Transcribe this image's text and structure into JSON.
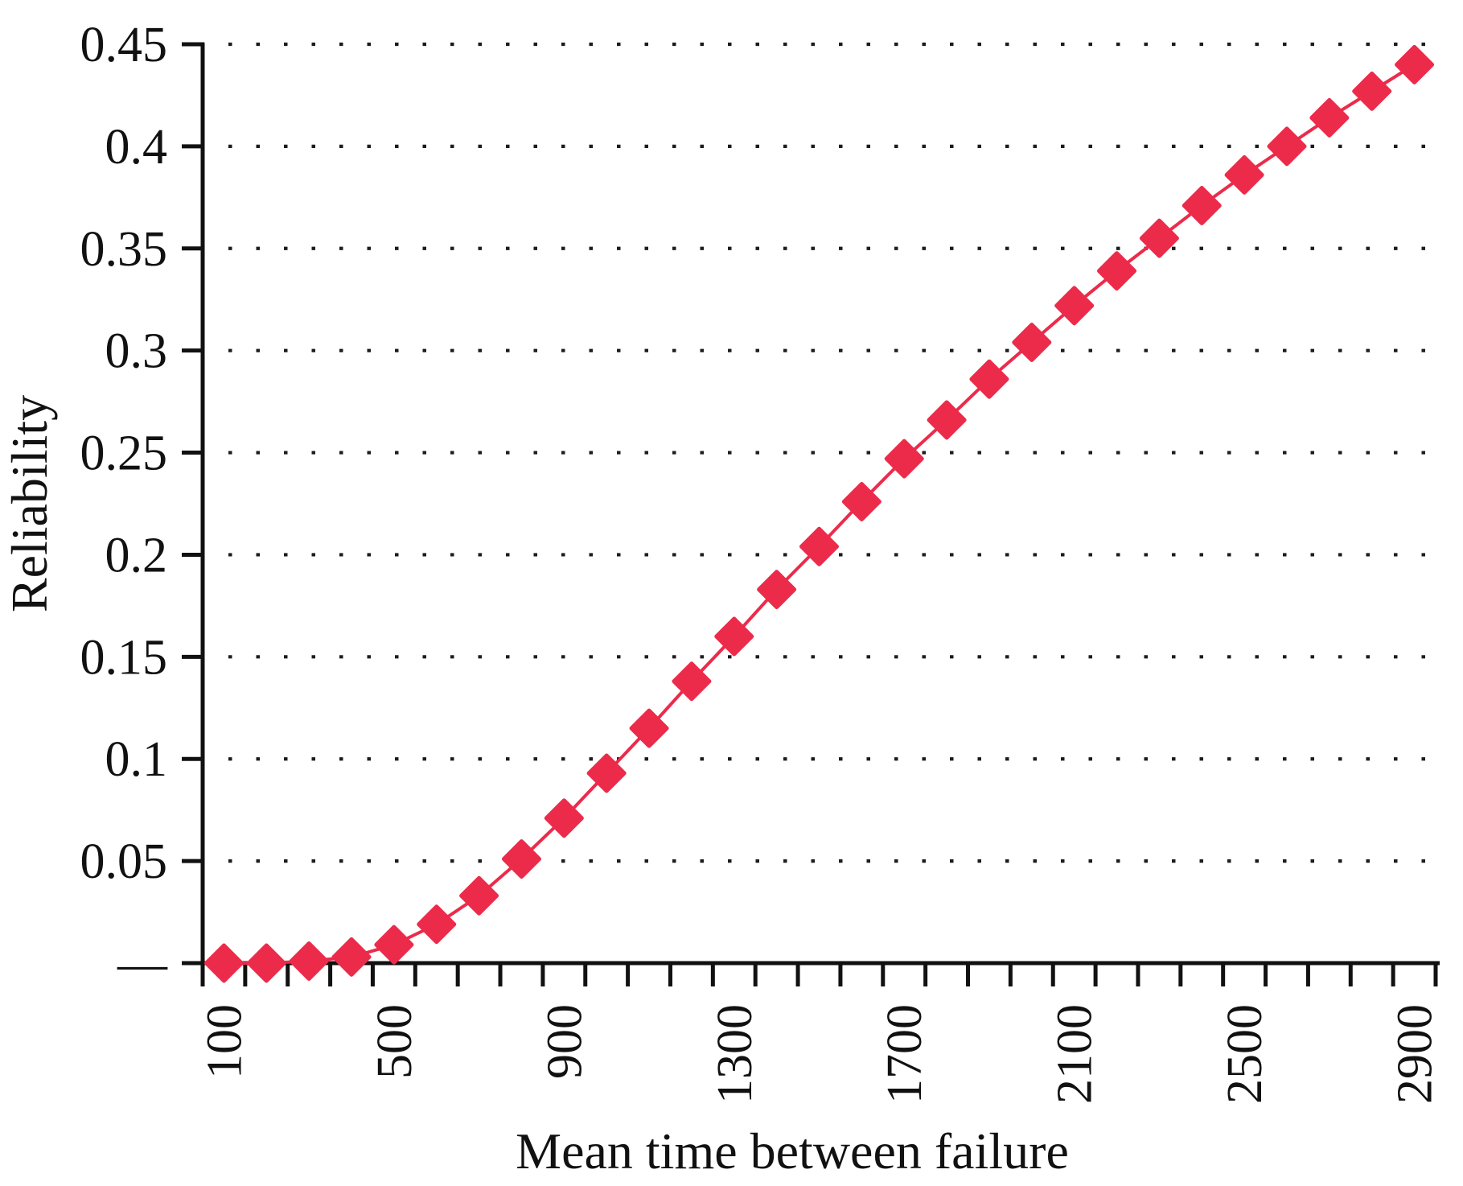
{
  "chart_data": {
    "type": "line",
    "title": "",
    "xlabel": "Mean time between failure",
    "ylabel": "Reliability",
    "x": [
      100,
      200,
      300,
      400,
      500,
      600,
      700,
      800,
      900,
      1000,
      1100,
      1200,
      1300,
      1400,
      1500,
      1600,
      1700,
      1800,
      1900,
      2000,
      2100,
      2200,
      2300,
      2400,
      2500,
      2600,
      2700,
      2800,
      2900
    ],
    "values": [
      0.0,
      0.0,
      0.001,
      0.003,
      0.009,
      0.019,
      0.033,
      0.051,
      0.071,
      0.093,
      0.115,
      0.138,
      0.16,
      0.183,
      0.204,
      0.226,
      0.247,
      0.266,
      0.286,
      0.304,
      0.322,
      0.339,
      0.355,
      0.371,
      0.386,
      0.4,
      0.414,
      0.427,
      0.44
    ],
    "ylim": [
      0,
      0.45
    ],
    "ytick_step": 0.05,
    "y_tick_labels": [
      "—",
      "0.05",
      "0.1",
      "0.15",
      "0.2",
      "0.25",
      "0.3",
      "0.35",
      "0.4",
      "0.45"
    ],
    "x_tick_labels": [
      "100",
      "500",
      "900",
      "1300",
      "1700",
      "2100",
      "2500",
      "2900"
    ],
    "x_label_every": 4,
    "grid": "dotted",
    "legend": "none",
    "marker": "diamond",
    "series_color": "#EC2B4B",
    "axis_color": "#111111",
    "grid_dot_color": "#1c1c1c"
  }
}
